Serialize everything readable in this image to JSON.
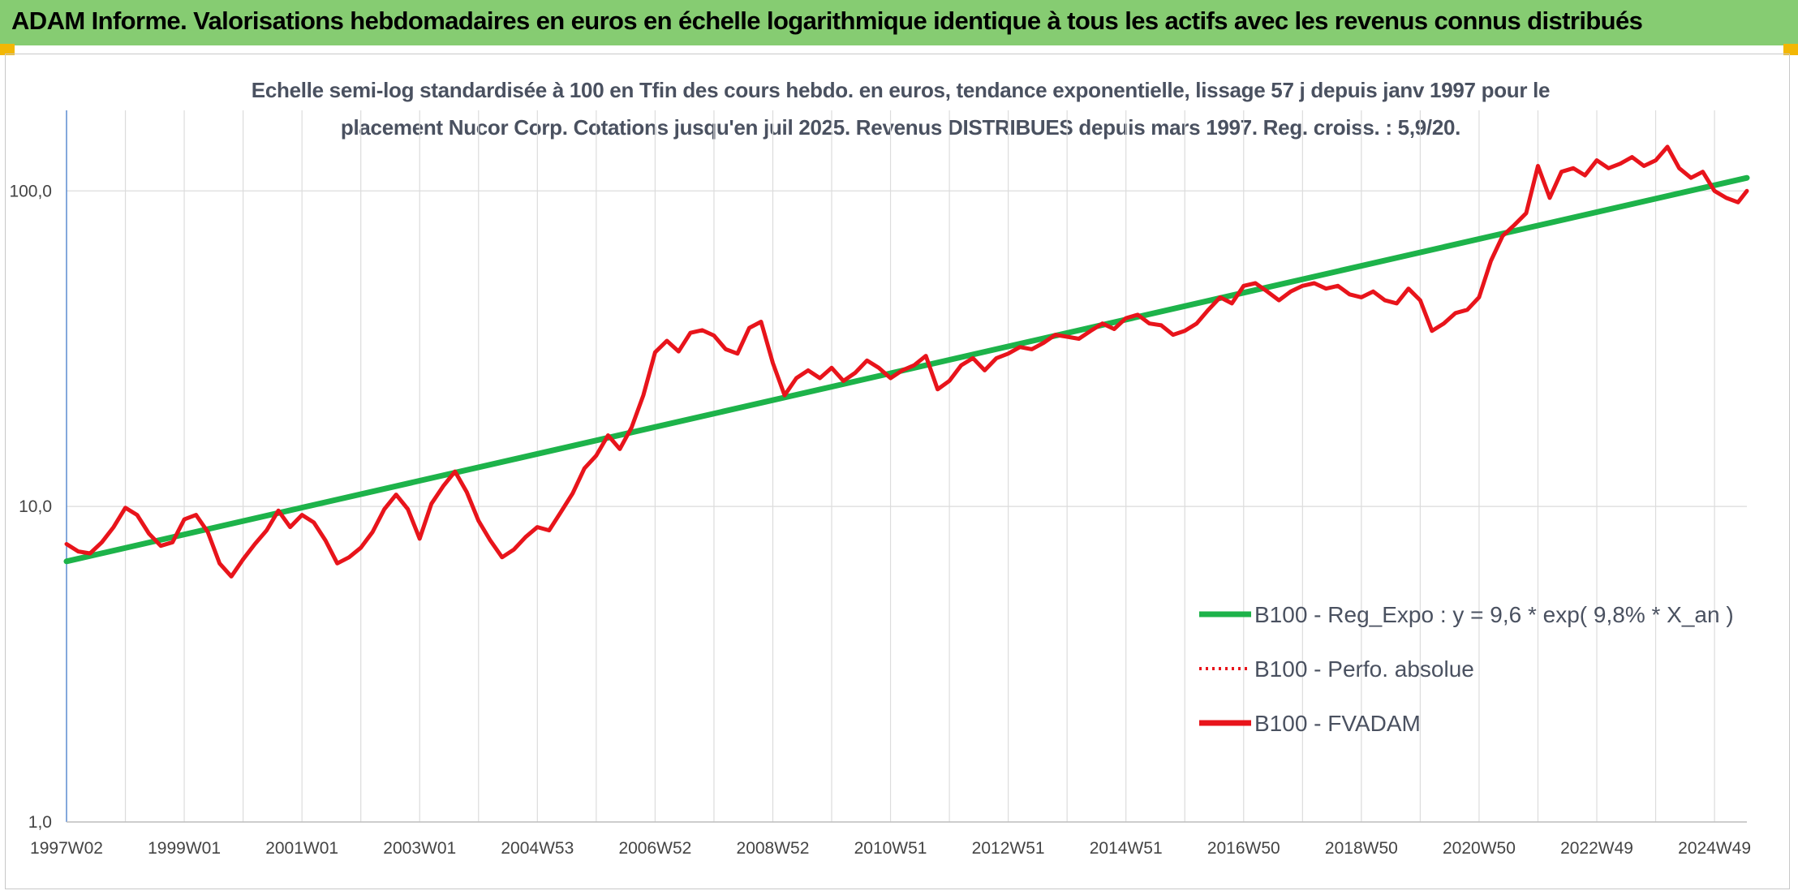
{
  "header": {
    "title": "ADAM Informe. Valorisations hebdomadaires en euros en échelle logarithmique identique à tous les actifs avec les revenus connus distribués"
  },
  "chart_data": {
    "type": "line",
    "title_line1": "Echelle semi-log standardisée à 100 en Tfin des cours hebdo. en euros, tendance exponentielle, lissage 57 j depuis janv 1997 pour le",
    "title_line2": "placement Nucor Corp. Cotations jusqu'en juil 2025. Revenus DISTRIBUES depuis mars 1997. Reg. croiss. : 5,9/20.",
    "y_scale": "log",
    "ylim": [
      1,
      180
    ],
    "y_ticks": [
      {
        "value": 1,
        "label": "1,0"
      },
      {
        "value": 10,
        "label": "10,0"
      },
      {
        "value": 100,
        "label": "100,0"
      }
    ],
    "xlim": [
      1997.0,
      2025.55
    ],
    "x_ticks": [
      {
        "value": 1997.0,
        "label": "1997W02"
      },
      {
        "value": 1999.0,
        "label": "1999W01"
      },
      {
        "value": 2001.0,
        "label": "2001W01"
      },
      {
        "value": 2003.0,
        "label": "2003W01"
      },
      {
        "value": 2005.0,
        "label": "2004W53"
      },
      {
        "value": 2007.0,
        "label": "2006W52"
      },
      {
        "value": 2009.0,
        "label": "2008W52"
      },
      {
        "value": 2011.0,
        "label": "2010W51"
      },
      {
        "value": 2013.0,
        "label": "2012W51"
      },
      {
        "value": 2015.0,
        "label": "2014W51"
      },
      {
        "value": 2017.0,
        "label": "2016W50"
      },
      {
        "value": 2019.0,
        "label": "2018W50"
      },
      {
        "value": 2021.0,
        "label": "2020W50"
      },
      {
        "value": 2023.0,
        "label": "2022W49"
      },
      {
        "value": 2025.0,
        "label": "2024W49"
      }
    ],
    "grid": true,
    "legend_position": "bottom-right",
    "series": [
      {
        "name": "B100 - Reg_Expo : y = 9,6 * exp( 9,8% *  X_an )",
        "color": "#1db34a",
        "style": "solid",
        "x": [
          1997.0,
          2025.55
        ],
        "y": [
          6.7,
          110
        ]
      },
      {
        "name": "B100 - Perfo. absolue",
        "color": "#e8141b",
        "style": "dotted",
        "x": [],
        "y": []
      },
      {
        "name": "B100 - FVADAM",
        "color": "#e8141b",
        "style": "solid",
        "x": [
          1997.0,
          1997.2,
          1997.4,
          1997.6,
          1997.8,
          1998.0,
          1998.2,
          1998.4,
          1998.6,
          1998.8,
          1999.0,
          1999.2,
          1999.4,
          1999.6,
          1999.8,
          2000.0,
          2000.2,
          2000.4,
          2000.6,
          2000.8,
          2001.0,
          2001.2,
          2001.4,
          2001.6,
          2001.8,
          2002.0,
          2002.2,
          2002.4,
          2002.6,
          2002.8,
          2003.0,
          2003.2,
          2003.4,
          2003.6,
          2003.8,
          2004.0,
          2004.2,
          2004.4,
          2004.6,
          2004.8,
          2005.0,
          2005.2,
          2005.4,
          2005.6,
          2005.8,
          2006.0,
          2006.2,
          2006.4,
          2006.6,
          2006.8,
          2007.0,
          2007.2,
          2007.4,
          2007.6,
          2007.8,
          2008.0,
          2008.2,
          2008.4,
          2008.6,
          2008.8,
          2009.0,
          2009.2,
          2009.4,
          2009.6,
          2009.8,
          2010.0,
          2010.2,
          2010.4,
          2010.6,
          2010.8,
          2011.0,
          2011.2,
          2011.4,
          2011.6,
          2011.8,
          2012.0,
          2012.2,
          2012.4,
          2012.6,
          2012.8,
          2013.0,
          2013.2,
          2013.4,
          2013.6,
          2013.8,
          2014.0,
          2014.2,
          2014.4,
          2014.6,
          2014.8,
          2015.0,
          2015.2,
          2015.4,
          2015.6,
          2015.8,
          2016.0,
          2016.2,
          2016.4,
          2016.6,
          2016.8,
          2017.0,
          2017.2,
          2017.4,
          2017.6,
          2017.8,
          2018.0,
          2018.2,
          2018.4,
          2018.6,
          2018.8,
          2019.0,
          2019.2,
          2019.4,
          2019.6,
          2019.8,
          2020.0,
          2020.2,
          2020.4,
          2020.6,
          2020.8,
          2021.0,
          2021.2,
          2021.4,
          2021.6,
          2021.8,
          2022.0,
          2022.2,
          2022.4,
          2022.6,
          2022.8,
          2023.0,
          2023.2,
          2023.4,
          2023.6,
          2023.8,
          2024.0,
          2024.2,
          2024.4,
          2024.6,
          2024.8,
          2025.0,
          2025.2,
          2025.4,
          2025.55
        ],
        "y": [
          7.6,
          7.2,
          7.1,
          7.7,
          8.6,
          9.9,
          9.4,
          8.2,
          7.5,
          7.7,
          9.1,
          9.4,
          8.3,
          6.6,
          6.0,
          6.8,
          7.6,
          8.4,
          9.7,
          8.6,
          9.4,
          8.9,
          7.8,
          6.6,
          6.9,
          7.4,
          8.3,
          9.8,
          10.9,
          9.8,
          7.9,
          10.2,
          11.6,
          12.9,
          11.1,
          9.0,
          7.8,
          6.9,
          7.3,
          8.0,
          8.6,
          8.4,
          9.6,
          11.0,
          13.2,
          14.5,
          16.8,
          15.2,
          17.8,
          22.5,
          30.8,
          33.5,
          31.0,
          35.5,
          36.2,
          34.8,
          31.5,
          30.5,
          36.8,
          38.5,
          28.5,
          22.5,
          25.5,
          27.0,
          25.5,
          27.5,
          25.0,
          26.5,
          29.0,
          27.5,
          25.5,
          27.0,
          28.0,
          30.0,
          23.5,
          25.0,
          28.0,
          29.5,
          27.0,
          29.5,
          30.5,
          32.0,
          31.5,
          33.0,
          35.0,
          34.5,
          34.0,
          36.0,
          38.0,
          36.5,
          39.5,
          40.5,
          38.0,
          37.5,
          35.0,
          36.0,
          38.0,
          42.0,
          46.0,
          44.0,
          50.0,
          51.0,
          48.0,
          45.0,
          48.0,
          50.0,
          51.0,
          49.0,
          50.0,
          47.0,
          46.0,
          48.0,
          45.0,
          44.0,
          49.0,
          45.0,
          36.0,
          38.0,
          41.0,
          42.0,
          46.0,
          60.0,
          72.0,
          78.0,
          85.0,
          120.0,
          95.0,
          115.0,
          118.0,
          112.0,
          125.0,
          118.0,
          122.0,
          128.0,
          120.0,
          125.0,
          138.0,
          118.0,
          110.0,
          115.0,
          100.0,
          95.0,
          92.0,
          100.0
        ]
      }
    ]
  }
}
